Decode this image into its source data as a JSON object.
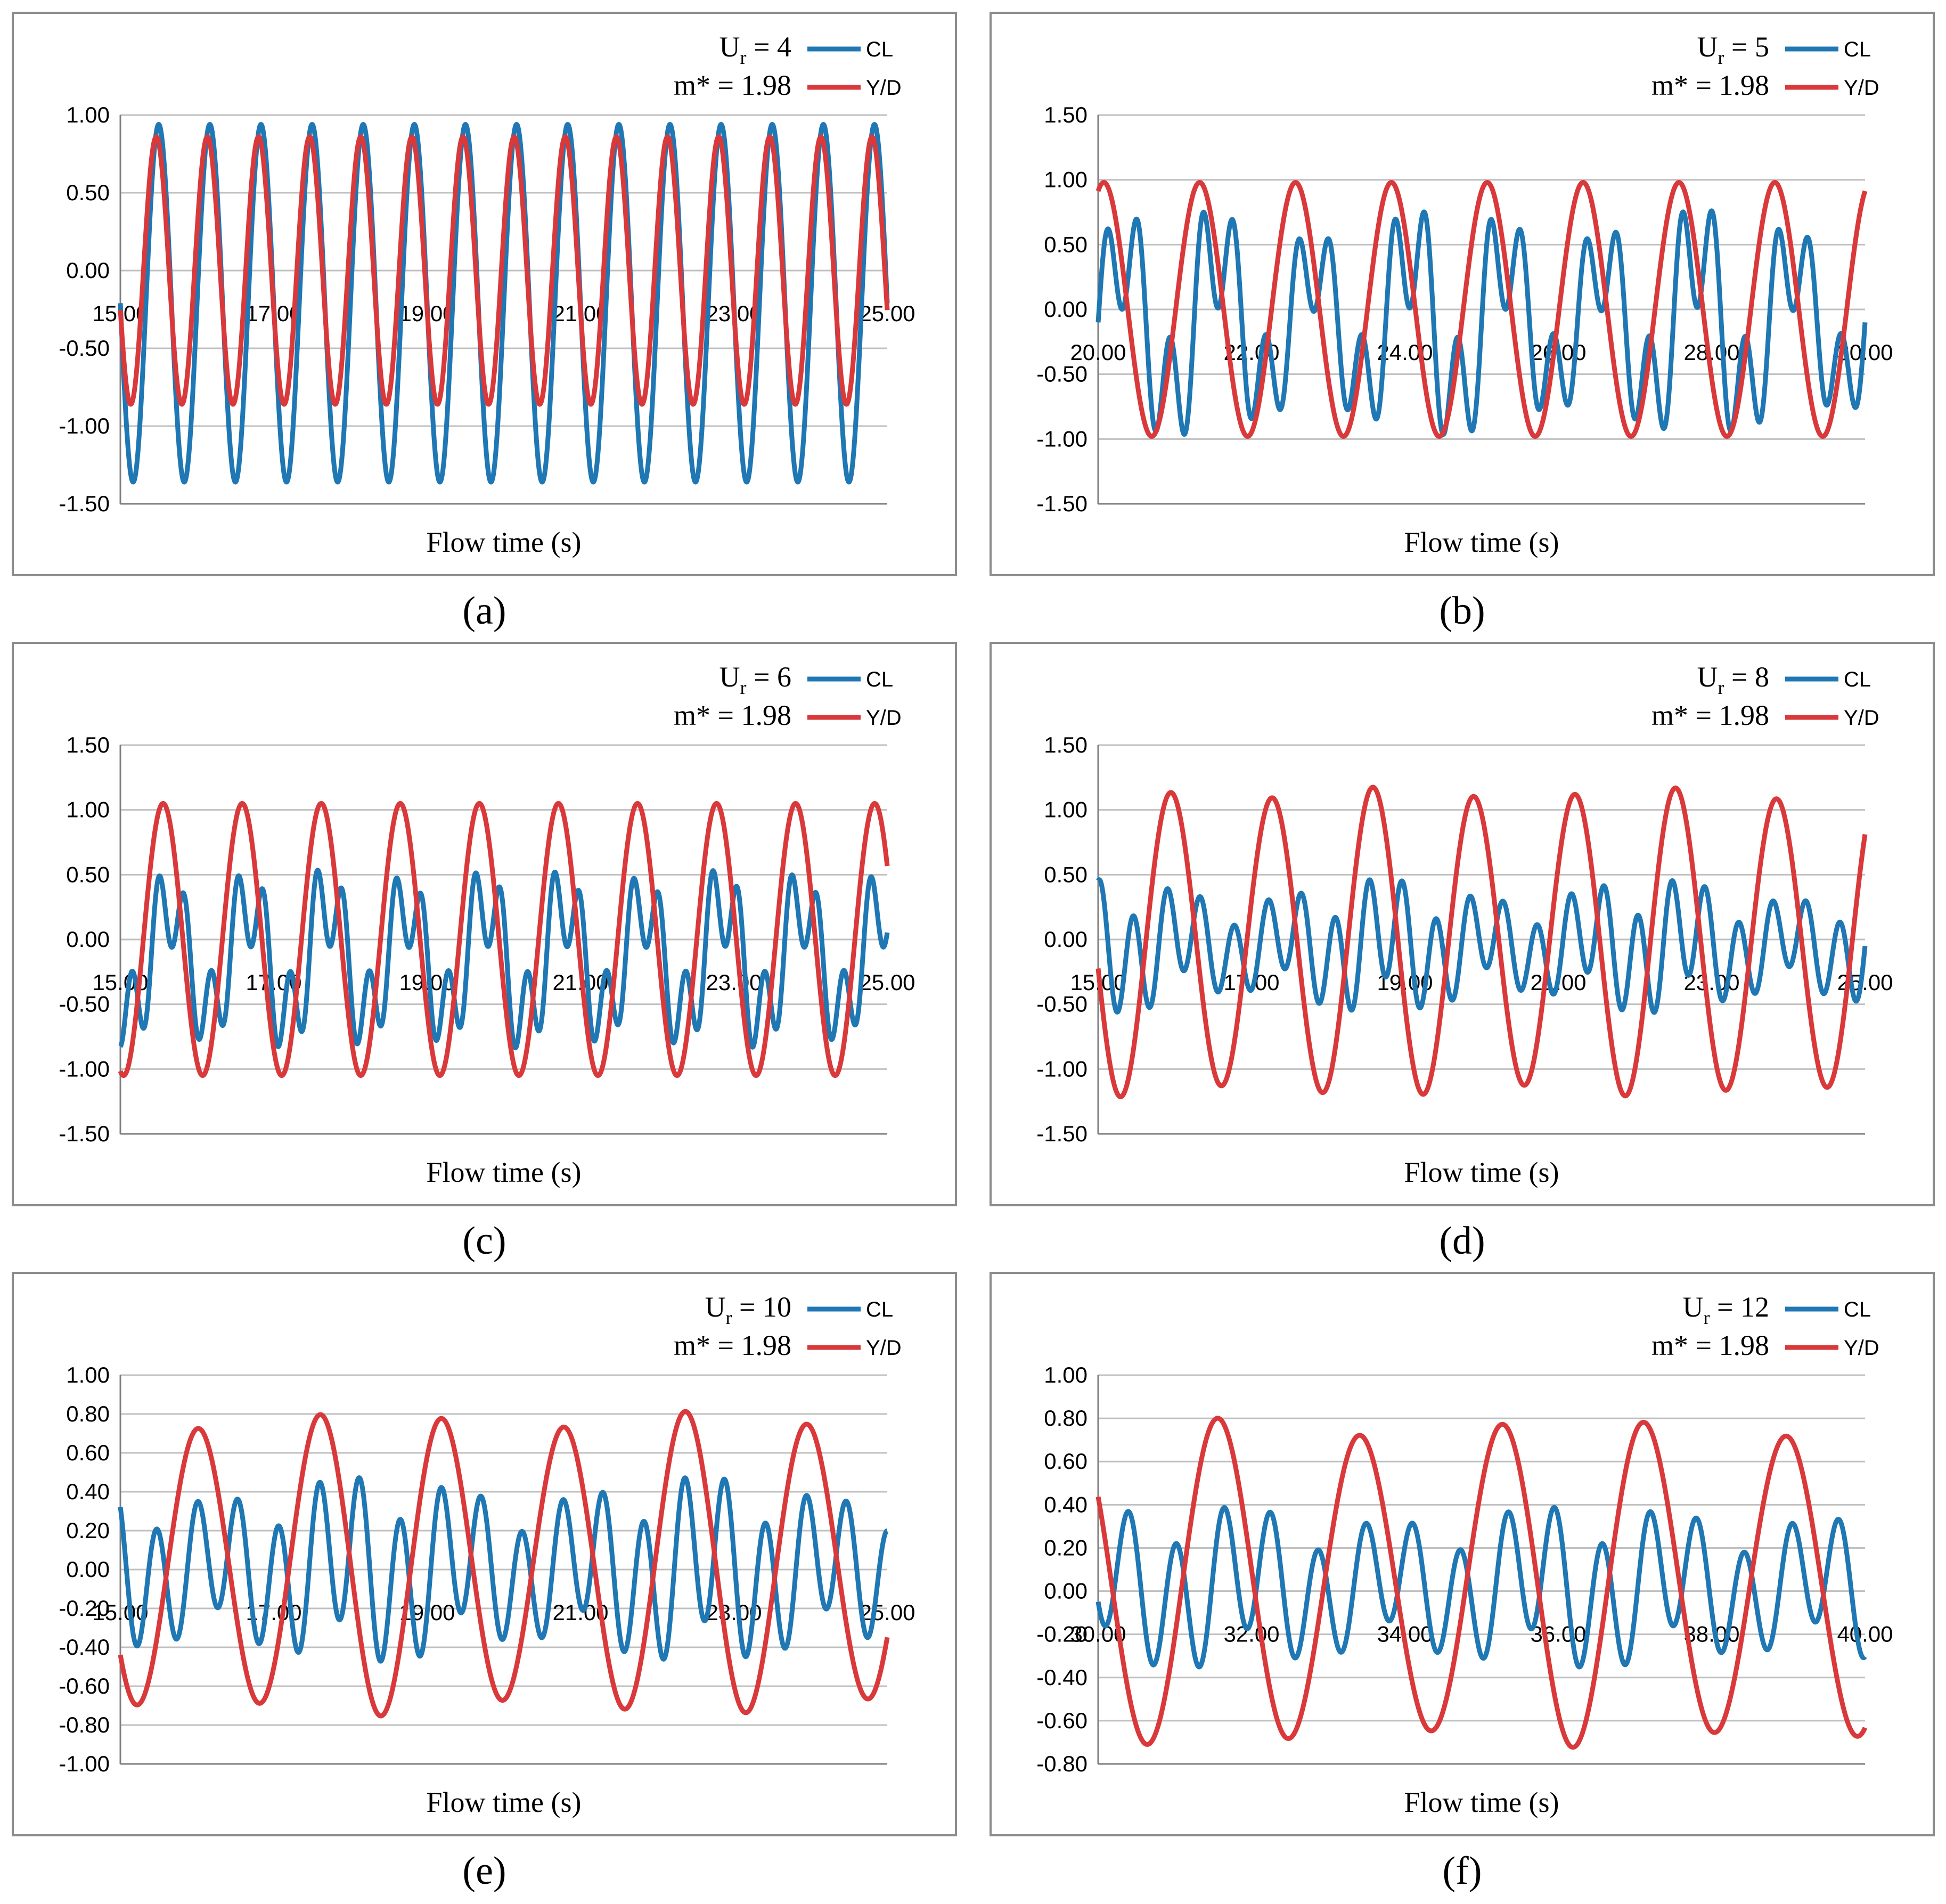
{
  "chart_data": [
    {
      "id": "a",
      "type": "line",
      "caption": "(a)",
      "xlabel": "Flow time (s)",
      "annotation": {
        "ur_prefix": "U",
        "ur_sub": "r",
        "ur_value": " = 4",
        "mass": "m* = 1.98"
      },
      "xlim": [
        15,
        25
      ],
      "ylim": [
        -1.5,
        1.0
      ],
      "xticks": [
        "15.00",
        "17.00",
        "19.00",
        "21.00",
        "23.00",
        "25.00"
      ],
      "yticks": [
        "-1.50",
        "-1.00",
        "-0.50",
        "0.00",
        "0.50",
        "1.00"
      ],
      "series": [
        {
          "name": "CL",
          "color": "#1f77b4",
          "params": {
            "freq": 1.5,
            "mean": -0.21,
            "amp": 1.15,
            "h2": 0.0,
            "h3": 0.0,
            "mod": 0.0,
            "phase": 0.0
          }
        },
        {
          "name": "Y/D",
          "color": "#d9393a",
          "params": {
            "freq": 1.5,
            "mean": 0.0,
            "amp": 0.86,
            "h2": 0.0,
            "h3": 0.0,
            "mod": 0.0,
            "phase": 0.3
          }
        }
      ]
    },
    {
      "id": "b",
      "type": "line",
      "caption": "(b)",
      "xlabel": "Flow time (s)",
      "annotation": {
        "ur_prefix": "U",
        "ur_sub": "r",
        "ur_value": " = 5",
        "mass": "m* = 1.98"
      },
      "xlim": [
        20,
        30
      ],
      "ylim": [
        -1.5,
        1.5
      ],
      "xticks": [
        "20.00",
        "22.00",
        "24.00",
        "26.00",
        "28.00",
        "30.00"
      ],
      "yticks": [
        "-1.50",
        "-1.00",
        "-0.50",
        "0.00",
        "0.50",
        "1.00",
        "1.50"
      ],
      "series": [
        {
          "name": "CL",
          "color": "#1f77b4",
          "params": {
            "freq": 0.8,
            "mean": -0.1,
            "amp": 0.55,
            "h2": 0.0,
            "h3": 0.45,
            "mod": 0.15,
            "phase": 0.0
          }
        },
        {
          "name": "Y/D",
          "color": "#d9393a",
          "params": {
            "freq": 0.8,
            "mean": 0.0,
            "amp": 0.98,
            "h2": 0.0,
            "h3": 0.0,
            "mod": 0.0,
            "phase": 1.2
          }
        }
      ]
    },
    {
      "id": "c",
      "type": "line",
      "caption": "(c)",
      "xlabel": "Flow time (s)",
      "annotation": {
        "ur_prefix": "U",
        "ur_sub": "r",
        "ur_value": " = 6",
        "mass": "m* = 1.98"
      },
      "xlim": [
        15,
        25
      ],
      "ylim": [
        -1.5,
        1.5
      ],
      "xticks": [
        "15.00",
        "17.00",
        "19.00",
        "21.00",
        "23.00",
        "25.00"
      ],
      "yticks": [
        "-1.50",
        "-1.00",
        "-0.50",
        "0.00",
        "0.50",
        "1.00",
        "1.50"
      ],
      "series": [
        {
          "name": "CL",
          "color": "#1f77b4",
          "params": {
            "freq": 0.97,
            "mean": -0.15,
            "amp": 0.45,
            "h2": 0.0,
            "h3": 0.35,
            "mod": 0.05,
            "phase": 0.5
          }
        },
        {
          "name": "Y/D",
          "color": "#d9393a",
          "params": {
            "freq": 0.97,
            "mean": 0.0,
            "amp": 1.05,
            "h2": 0.0,
            "h3": 0.0,
            "mod": 0.0,
            "phase": 1.0
          }
        }
      ]
    },
    {
      "id": "d",
      "type": "line",
      "caption": "(d)",
      "xlabel": "Flow time (s)",
      "annotation": {
        "ur_prefix": "U",
        "ur_sub": "r",
        "ur_value": " = 8",
        "mass": "m* = 1.98"
      },
      "xlim": [
        15,
        25
      ],
      "ylim": [
        -1.5,
        1.5
      ],
      "xticks": [
        "15.00",
        "17.00",
        "19.00",
        "21.00",
        "23.00",
        "25.00"
      ],
      "yticks": [
        "-1.50",
        "-1.00",
        "-0.50",
        "0.00",
        "0.50",
        "1.00",
        "1.50"
      ],
      "series": [
        {
          "name": "CL",
          "color": "#1f77b4",
          "params": {
            "freq": 0.76,
            "mean": -0.05,
            "amp": 0.15,
            "h2": 0.0,
            "h3": 0.35,
            "mod": 0.2,
            "phase": 0.0
          }
        },
        {
          "name": "Y/D",
          "color": "#d9393a",
          "params": {
            "freq": 0.76,
            "mean": -0.02,
            "amp": 1.15,
            "h2": 0.0,
            "h3": 0.0,
            "mod": 0.04,
            "phase": 0.8
          }
        }
      ]
    },
    {
      "id": "e",
      "type": "line",
      "caption": "(e)",
      "xlabel": "Flow time (s)",
      "annotation": {
        "ur_prefix": "U",
        "ur_sub": "r",
        "ur_value": " = 10",
        "mass": "m* = 1.98"
      },
      "xlim": [
        15,
        25
      ],
      "ylim": [
        -1.0,
        1.0
      ],
      "xticks": [
        "15.00",
        "17.00",
        "19.00",
        "21.00",
        "23.00",
        "25.00"
      ],
      "yticks": [
        "-1.00",
        "-0.80",
        "-0.60",
        "-0.40",
        "-0.20",
        "0.00",
        "0.20",
        "0.40",
        "0.60",
        "0.80",
        "1.00"
      ],
      "series": [
        {
          "name": "CL",
          "color": "#1f77b4",
          "params": {
            "freq": 0.63,
            "mean": 0.0,
            "amp": 0.12,
            "h2": 0.0,
            "h3": 0.35,
            "mod": 0.15,
            "phase": 0.0
          }
        },
        {
          "name": "Y/D",
          "color": "#d9393a",
          "params": {
            "freq": 0.63,
            "mean": 0.03,
            "amp": 0.74,
            "h2": 0.0,
            "h3": 0.0,
            "mod": 0.06,
            "phase": 1.0
          }
        }
      ]
    },
    {
      "id": "f",
      "type": "line",
      "caption": "(f)",
      "xlabel": "Flow time (s)",
      "annotation": {
        "ur_prefix": "U",
        "ur_sub": "r",
        "ur_value": " = 12",
        "mass": "m* = 1.98"
      },
      "xlim": [
        30,
        40
      ],
      "ylim": [
        -0.8,
        1.0
      ],
      "xticks": [
        "30.00",
        "32.00",
        "34.00",
        "36.00",
        "38.00",
        "40.00"
      ],
      "yticks": [
        "-0.80",
        "-0.60",
        "-0.40",
        "-0.20",
        "0.00",
        "0.20",
        "0.40",
        "0.60",
        "0.80",
        "1.00"
      ],
      "series": [
        {
          "name": "CL",
          "color": "#1f77b4",
          "params": {
            "freq": 0.54,
            "mean": 0.02,
            "amp": 0.1,
            "h2": 0.0,
            "h3": 0.28,
            "mod": 0.12,
            "phase": 0.0
          }
        },
        {
          "name": "Y/D",
          "color": "#d9393a",
          "params": {
            "freq": 0.54,
            "mean": 0.04,
            "amp": 0.72,
            "h2": 0.0,
            "h3": 0.0,
            "mod": 0.06,
            "phase": 1.3
          }
        }
      ]
    }
  ]
}
